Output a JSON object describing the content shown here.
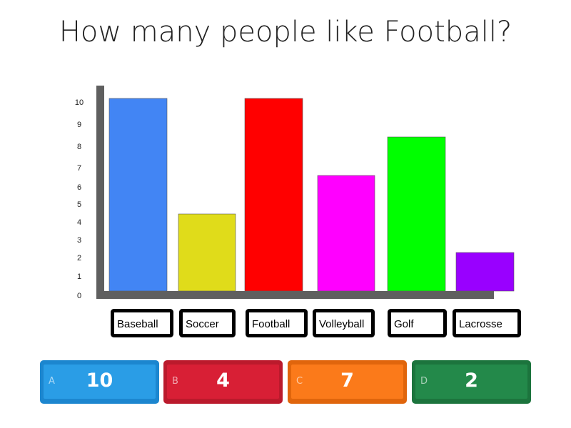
{
  "question": "How many people like Football?",
  "chart_data": {
    "type": "bar",
    "categories": [
      "Baseball",
      "Soccer",
      "Football",
      "Volleyball",
      "Golf",
      "Lacrosse"
    ],
    "values": [
      10,
      4,
      10,
      6,
      8,
      2
    ],
    "colors": [
      "#4285f4",
      "#e0dc1a",
      "#ff0000",
      "#ff00ff",
      "#00ff00",
      "#9900ff"
    ],
    "yticks": [
      "0",
      "1",
      "2",
      "3",
      "4",
      "5",
      "6",
      "7",
      "8",
      "9",
      "10"
    ],
    "ylim": [
      0,
      10
    ],
    "axis_color": "#5f5f5f"
  },
  "options": [
    {
      "letter": "A",
      "value": "10",
      "color": "#2a9de6",
      "edge": "#1c86cf"
    },
    {
      "letter": "B",
      "value": "4",
      "color": "#d81f35",
      "edge": "#bb1a2c"
    },
    {
      "letter": "C",
      "value": "7",
      "color": "#fb7a1a",
      "edge": "#e0650c"
    },
    {
      "letter": "D",
      "value": "2",
      "color": "#23894a",
      "edge": "#1c743d"
    }
  ]
}
